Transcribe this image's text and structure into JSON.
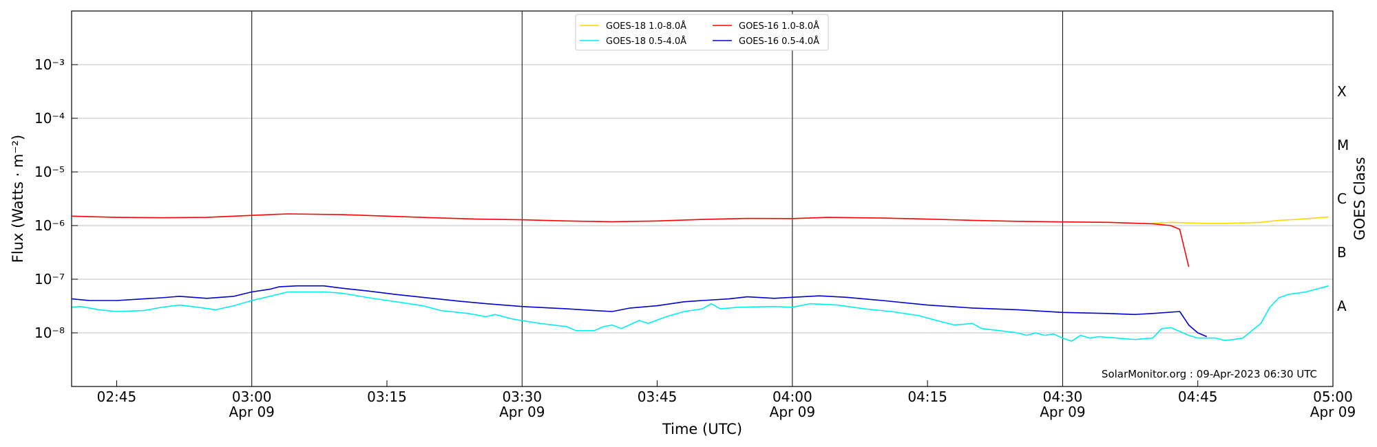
{
  "chart_data": {
    "type": "line",
    "title": "",
    "xlabel": "Time (UTC)",
    "ylabel": "Flux (Watts · m⁻²)",
    "y2label": "GOES Class",
    "yscale": "log",
    "xlim": [
      "2023-04-09T02:40:00",
      "2023-04-09T05:00:00"
    ],
    "ylim": [
      1e-09,
      0.01
    ],
    "grid": "horizontal",
    "legend": "top-center",
    "credit": "SolarMonitor.org : 09-Apr-2023 06:30 UTC",
    "x_major_ticks": [
      {
        "t": "2023-04-09T03:00:00",
        "line1": "03:00",
        "line2": "Apr 09"
      },
      {
        "t": "2023-04-09T03:30:00",
        "line1": "03:30",
        "line2": "Apr 09"
      },
      {
        "t": "2023-04-09T04:00:00",
        "line1": "04:00",
        "line2": "Apr 09"
      },
      {
        "t": "2023-04-09T04:30:00",
        "line1": "04:30",
        "line2": "Apr 09"
      },
      {
        "t": "2023-04-09T05:00:00",
        "line1": "05:00",
        "line2": "Apr 09"
      }
    ],
    "x_minor_ticks": [
      {
        "t": "2023-04-09T02:45:00",
        "label": "02:45"
      },
      {
        "t": "2023-04-09T03:15:00",
        "label": "03:15"
      },
      {
        "t": "2023-04-09T03:45:00",
        "label": "03:45"
      },
      {
        "t": "2023-04-09T04:15:00",
        "label": "04:15"
      },
      {
        "t": "2023-04-09T04:45:00",
        "label": "04:45"
      }
    ],
    "y_ticks": [
      {
        "value": 1e-08,
        "label": "10⁻⁸"
      },
      {
        "value": 1e-07,
        "label": "10⁻⁷"
      },
      {
        "value": 1e-06,
        "label": "10⁻⁶"
      },
      {
        "value": 1e-05,
        "label": "10⁻⁵"
      },
      {
        "value": 0.0001,
        "label": "10⁻⁴"
      },
      {
        "value": 0.001,
        "label": "10⁻³"
      }
    ],
    "goes_classes": [
      {
        "label": "A",
        "value": 3.16e-08
      },
      {
        "label": "B",
        "value": 3.16e-07
      },
      {
        "label": "C",
        "value": 3.16e-06
      },
      {
        "label": "M",
        "value": 3.16e-05
      },
      {
        "label": "X",
        "value": 0.000316
      }
    ],
    "series": [
      {
        "name": "GOES-18 1.0-8.0Å",
        "color": "#ffd700",
        "points": [
          [
            "2023-04-09T04:40:00",
            1.1e-06
          ],
          [
            "2023-04-09T04:42:00",
            1.15e-06
          ],
          [
            "2023-04-09T04:44:00",
            1.12e-06
          ],
          [
            "2023-04-09T04:46:00",
            1.1e-06
          ],
          [
            "2023-04-09T04:48:00",
            1.1e-06
          ],
          [
            "2023-04-09T04:50:00",
            1.12e-06
          ],
          [
            "2023-04-09T04:52:00",
            1.15e-06
          ],
          [
            "2023-04-09T04:54:00",
            1.25e-06
          ],
          [
            "2023-04-09T04:56:00",
            1.3e-06
          ],
          [
            "2023-04-09T04:58:00",
            1.38e-06
          ],
          [
            "2023-04-09T04:59:30",
            1.45e-06
          ]
        ]
      },
      {
        "name": "GOES-18 0.5-4.0Å",
        "color": "#00eeee",
        "points": [
          [
            "2023-04-09T02:40:00",
            3e-08
          ],
          [
            "2023-04-09T02:41:00",
            3.1e-08
          ],
          [
            "2023-04-09T02:43:00",
            2.7e-08
          ],
          [
            "2023-04-09T02:45:00",
            2.5e-08
          ],
          [
            "2023-04-09T02:48:00",
            2.6e-08
          ],
          [
            "2023-04-09T02:50:00",
            3e-08
          ],
          [
            "2023-04-09T02:52:00",
            3.3e-08
          ],
          [
            "2023-04-09T02:54:00",
            3e-08
          ],
          [
            "2023-04-09T02:56:00",
            2.7e-08
          ],
          [
            "2023-04-09T02:58:00",
            3.2e-08
          ],
          [
            "2023-04-09T03:00:00",
            4e-08
          ],
          [
            "2023-04-09T03:02:00",
            4.8e-08
          ],
          [
            "2023-04-09T03:04:00",
            5.8e-08
          ],
          [
            "2023-04-09T03:08:00",
            5.8e-08
          ],
          [
            "2023-04-09T03:10:00",
            5.5e-08
          ],
          [
            "2023-04-09T03:13:00",
            4.5e-08
          ],
          [
            "2023-04-09T03:16:00",
            3.8e-08
          ],
          [
            "2023-04-09T03:19:00",
            3.2e-08
          ],
          [
            "2023-04-09T03:21:00",
            2.6e-08
          ],
          [
            "2023-04-09T03:24:00",
            2.3e-08
          ],
          [
            "2023-04-09T03:26:00",
            2e-08
          ],
          [
            "2023-04-09T03:27:00",
            2.2e-08
          ],
          [
            "2023-04-09T03:29:00",
            1.8e-08
          ],
          [
            "2023-04-09T03:32:00",
            1.5e-08
          ],
          [
            "2023-04-09T03:35:00",
            1.3e-08
          ],
          [
            "2023-04-09T03:36:00",
            1.1e-08
          ],
          [
            "2023-04-09T03:38:00",
            1.1e-08
          ],
          [
            "2023-04-09T03:39:00",
            1.3e-08
          ],
          [
            "2023-04-09T03:40:00",
            1.4e-08
          ],
          [
            "2023-04-09T03:41:00",
            1.2e-08
          ],
          [
            "2023-04-09T03:43:00",
            1.7e-08
          ],
          [
            "2023-04-09T03:44:00",
            1.5e-08
          ],
          [
            "2023-04-09T03:46:00",
            2e-08
          ],
          [
            "2023-04-09T03:48:00",
            2.5e-08
          ],
          [
            "2023-04-09T03:50:00",
            2.8e-08
          ],
          [
            "2023-04-09T03:51:00",
            3.5e-08
          ],
          [
            "2023-04-09T03:52:00",
            2.8e-08
          ],
          [
            "2023-04-09T03:54:00",
            3e-08
          ],
          [
            "2023-04-09T03:58:00",
            3.1e-08
          ],
          [
            "2023-04-09T04:00:00",
            3e-08
          ],
          [
            "2023-04-09T04:02:00",
            3.5e-08
          ],
          [
            "2023-04-09T04:05:00",
            3.3e-08
          ],
          [
            "2023-04-09T04:08:00",
            2.8e-08
          ],
          [
            "2023-04-09T04:11:00",
            2.5e-08
          ],
          [
            "2023-04-09T04:14:00",
            2.1e-08
          ],
          [
            "2023-04-09T04:16:00",
            1.7e-08
          ],
          [
            "2023-04-09T04:18:00",
            1.4e-08
          ],
          [
            "2023-04-09T04:20:00",
            1.5e-08
          ],
          [
            "2023-04-09T04:21:00",
            1.2e-08
          ],
          [
            "2023-04-09T04:23:00",
            1.1e-08
          ],
          [
            "2023-04-09T04:25:00",
            1e-08
          ],
          [
            "2023-04-09T04:26:00",
            9e-09
          ],
          [
            "2023-04-09T04:27:00",
            1e-08
          ],
          [
            "2023-04-09T04:28:00",
            9e-09
          ],
          [
            "2023-04-09T04:29:00",
            9.5e-09
          ],
          [
            "2023-04-09T04:30:00",
            8e-09
          ],
          [
            "2023-04-09T04:31:00",
            7e-09
          ],
          [
            "2023-04-09T04:32:00",
            9e-09
          ],
          [
            "2023-04-09T04:33:00",
            8e-09
          ],
          [
            "2023-04-09T04:34:00",
            8.5e-09
          ],
          [
            "2023-04-09T04:36:00",
            8e-09
          ],
          [
            "2023-04-09T04:38:00",
            7.5e-09
          ],
          [
            "2023-04-09T04:40:00",
            8e-09
          ],
          [
            "2023-04-09T04:41:00",
            1.2e-08
          ],
          [
            "2023-04-09T04:42:00",
            1.25e-08
          ],
          [
            "2023-04-09T04:44:00",
            9e-09
          ],
          [
            "2023-04-09T04:45:00",
            8e-09
          ],
          [
            "2023-04-09T04:47:00",
            8e-09
          ],
          [
            "2023-04-09T04:48:00",
            7.2e-09
          ],
          [
            "2023-04-09T04:49:00",
            7.5e-09
          ],
          [
            "2023-04-09T04:50:00",
            8e-09
          ],
          [
            "2023-04-09T04:52:00",
            1.5e-08
          ],
          [
            "2023-04-09T04:53:00",
            3e-08
          ],
          [
            "2023-04-09T04:54:00",
            4.5e-08
          ],
          [
            "2023-04-09T04:55:00",
            5.2e-08
          ],
          [
            "2023-04-09T04:57:00",
            5.8e-08
          ],
          [
            "2023-04-09T04:59:30",
            7.5e-08
          ]
        ]
      },
      {
        "name": "GOES-16 1.0-8.0Å",
        "color": "#ff0000",
        "points": [
          [
            "2023-04-09T02:40:00",
            1.5e-06
          ],
          [
            "2023-04-09T02:45:00",
            1.42e-06
          ],
          [
            "2023-04-09T02:50:00",
            1.4e-06
          ],
          [
            "2023-04-09T02:55:00",
            1.42e-06
          ],
          [
            "2023-04-09T03:00:00",
            1.55e-06
          ],
          [
            "2023-04-09T03:04:00",
            1.65e-06
          ],
          [
            "2023-04-09T03:10:00",
            1.6e-06
          ],
          [
            "2023-04-09T03:15:00",
            1.5e-06
          ],
          [
            "2023-04-09T03:20:00",
            1.4e-06
          ],
          [
            "2023-04-09T03:25:00",
            1.32e-06
          ],
          [
            "2023-04-09T03:30:00",
            1.28e-06
          ],
          [
            "2023-04-09T03:35:00",
            1.22e-06
          ],
          [
            "2023-04-09T03:40:00",
            1.18e-06
          ],
          [
            "2023-04-09T03:45:00",
            1.22e-06
          ],
          [
            "2023-04-09T03:50:00",
            1.3e-06
          ],
          [
            "2023-04-09T03:55:00",
            1.36e-06
          ],
          [
            "2023-04-09T04:00:00",
            1.35e-06
          ],
          [
            "2023-04-09T04:04:00",
            1.42e-06
          ],
          [
            "2023-04-09T04:10:00",
            1.38e-06
          ],
          [
            "2023-04-09T04:15:00",
            1.32e-06
          ],
          [
            "2023-04-09T04:20:00",
            1.25e-06
          ],
          [
            "2023-04-09T04:25:00",
            1.2e-06
          ],
          [
            "2023-04-09T04:30:00",
            1.17e-06
          ],
          [
            "2023-04-09T04:35:00",
            1.15e-06
          ],
          [
            "2023-04-09T04:40:00",
            1.08e-06
          ],
          [
            "2023-04-09T04:42:00",
            1e-06
          ],
          [
            "2023-04-09T04:43:00",
            8.5e-07
          ],
          [
            "2023-04-09T04:44:00",
            1.7e-07
          ]
        ]
      },
      {
        "name": "GOES-16 0.5-4.0Å",
        "color": "#0000cd",
        "points": [
          [
            "2023-04-09T02:40:00",
            4.3e-08
          ],
          [
            "2023-04-09T02:42:00",
            4e-08
          ],
          [
            "2023-04-09T02:45:00",
            4e-08
          ],
          [
            "2023-04-09T02:48:00",
            4.3e-08
          ],
          [
            "2023-04-09T02:50:00",
            4.5e-08
          ],
          [
            "2023-04-09T02:52:00",
            4.8e-08
          ],
          [
            "2023-04-09T02:55:00",
            4.4e-08
          ],
          [
            "2023-04-09T02:58:00",
            4.8e-08
          ],
          [
            "2023-04-09T03:00:00",
            5.8e-08
          ],
          [
            "2023-04-09T03:02:00",
            6.5e-08
          ],
          [
            "2023-04-09T03:03:00",
            7.2e-08
          ],
          [
            "2023-04-09T03:05:00",
            7.5e-08
          ],
          [
            "2023-04-09T03:08:00",
            7.5e-08
          ],
          [
            "2023-04-09T03:10:00",
            6.8e-08
          ],
          [
            "2023-04-09T03:13:00",
            6e-08
          ],
          [
            "2023-04-09T03:16:00",
            5.2e-08
          ],
          [
            "2023-04-09T03:20:00",
            4.4e-08
          ],
          [
            "2023-04-09T03:23:00",
            3.9e-08
          ],
          [
            "2023-04-09T03:26:00",
            3.5e-08
          ],
          [
            "2023-04-09T03:30:00",
            3.1e-08
          ],
          [
            "2023-04-09T03:35:00",
            2.8e-08
          ],
          [
            "2023-04-09T03:38:00",
            2.6e-08
          ],
          [
            "2023-04-09T03:40:00",
            2.5e-08
          ],
          [
            "2023-04-09T03:42:00",
            2.9e-08
          ],
          [
            "2023-04-09T03:45:00",
            3.2e-08
          ],
          [
            "2023-04-09T03:48:00",
            3.8e-08
          ],
          [
            "2023-04-09T03:50:00",
            4e-08
          ],
          [
            "2023-04-09T03:53:00",
            4.3e-08
          ],
          [
            "2023-04-09T03:55:00",
            4.7e-08
          ],
          [
            "2023-04-09T03:58:00",
            4.4e-08
          ],
          [
            "2023-04-09T04:00:00",
            4.6e-08
          ],
          [
            "2023-04-09T04:03:00",
            4.9e-08
          ],
          [
            "2023-04-09T04:06:00",
            4.6e-08
          ],
          [
            "2023-04-09T04:10:00",
            4e-08
          ],
          [
            "2023-04-09T04:15:00",
            3.3e-08
          ],
          [
            "2023-04-09T04:20:00",
            2.9e-08
          ],
          [
            "2023-04-09T04:25:00",
            2.7e-08
          ],
          [
            "2023-04-09T04:30:00",
            2.4e-08
          ],
          [
            "2023-04-09T04:35:00",
            2.3e-08
          ],
          [
            "2023-04-09T04:38:00",
            2.2e-08
          ],
          [
            "2023-04-09T04:40:00",
            2.3e-08
          ],
          [
            "2023-04-09T04:43:00",
            2.5e-08
          ],
          [
            "2023-04-09T04:44:00",
            1.4e-08
          ],
          [
            "2023-04-09T04:45:00",
            1e-08
          ],
          [
            "2023-04-09T04:46:00",
            8.5e-09
          ]
        ]
      }
    ]
  }
}
